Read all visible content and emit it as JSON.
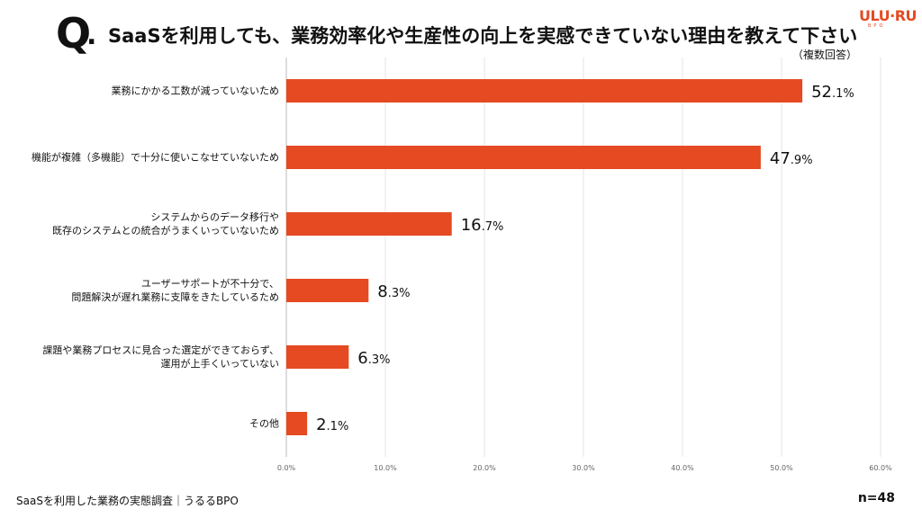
{
  "header": {
    "q": "Q",
    "title": "SaaSを利用しても、業務効率化や生産性の向上を実感できていない理由を教えて下さい",
    "note": "（複数回答）",
    "logo": "ULU·RU",
    "logo_sub": "BPO"
  },
  "footer": {
    "source": "SaaSを利用した業務の実態調査｜うるるBPO",
    "n": "n=48"
  },
  "chart_data": {
    "type": "bar",
    "orientation": "horizontal",
    "categories": [
      [
        "業務にかかる工数が減っていないため"
      ],
      [
        "機能が複雑（多機能）で十分に使いこなせていないため"
      ],
      [
        "システムからのデータ移行や",
        "既存のシステムとの統合がうまくいっていないため"
      ],
      [
        "ユーザーサポートが不十分で、",
        "問題解決が遅れ業務に支障をきたしているため"
      ],
      [
        "課題や業務プロセスに見合った選定ができておらず、",
        "運用が上手くいっていない"
      ],
      [
        "その他"
      ]
    ],
    "values": [
      52.1,
      47.9,
      16.7,
      8.3,
      6.3,
      2.1
    ],
    "value_labels": [
      "52.1%",
      "47.9%",
      "16.7%",
      "8.3%",
      "6.3%",
      "2.1%"
    ],
    "xlim": [
      0,
      60
    ],
    "ticks": [
      "0.0%",
      "10.0%",
      "20.0%",
      "30.0%",
      "40.0%",
      "50.0%",
      "60.0%"
    ],
    "grid": true,
    "bar_color": "#e54a23"
  }
}
